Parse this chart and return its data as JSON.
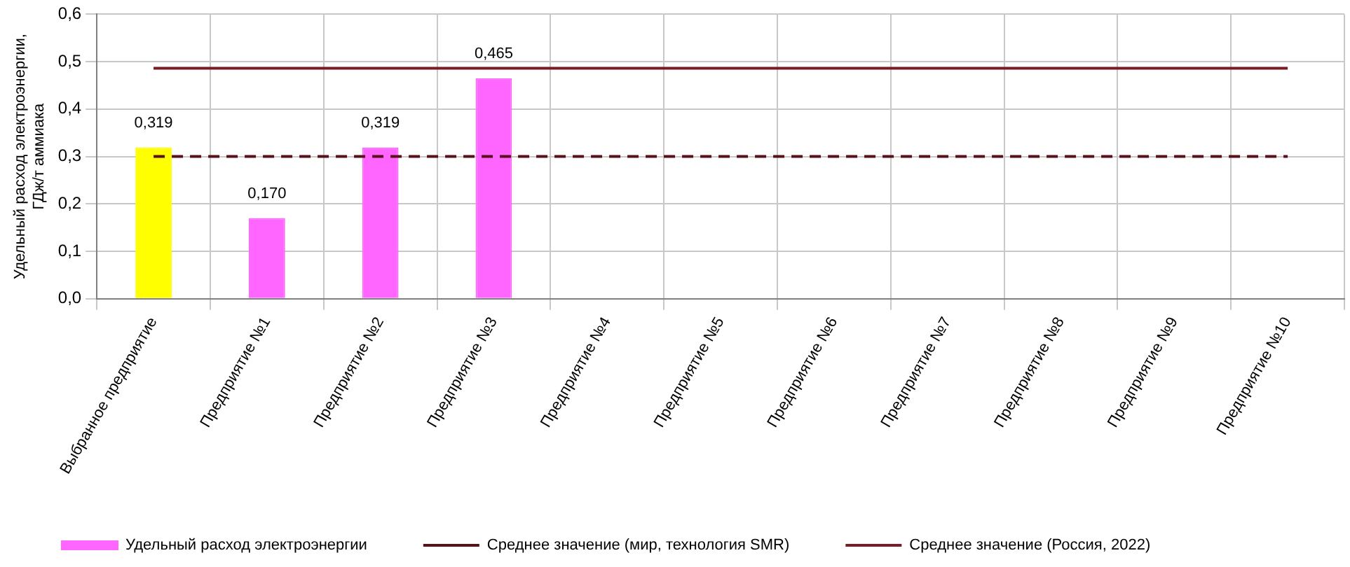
{
  "chart_data": {
    "type": "bar",
    "ylabel": "Удельный расход электроэнергии, ГДж/т аммиака",
    "categories": [
      "Выбранное предприятие",
      "Предприятие №1",
      "Предприятие №2",
      "Предприятие №3",
      "Предприятие №4",
      "Предприятие №5",
      "Предприятие №6",
      "Предприятие №7",
      "Предприятие №8",
      "Предприятие №9",
      "Предприятие №10"
    ],
    "series": [
      {
        "name": "Удельный расход электроэнергии",
        "color": "#ff66ff",
        "colors": [
          "#ffff00",
          "#ff66ff",
          "#ff66ff",
          "#ff66ff",
          "#ff66ff",
          "#ff66ff",
          "#ff66ff",
          "#ff66ff",
          "#ff66ff",
          "#ff66ff",
          "#ff66ff"
        ],
        "values": [
          0.319,
          0.17,
          0.319,
          0.465,
          null,
          null,
          null,
          null,
          null,
          null,
          null
        ],
        "value_labels": [
          "0,319",
          "0,170",
          "0,319",
          "0,465",
          null,
          null,
          null,
          null,
          null,
          null,
          null
        ]
      },
      {
        "name": "Среднее значение (мир, технология SMR)",
        "type": "line",
        "color": "#5a1018",
        "line_style": "dashed",
        "values": [
          0.3,
          0.3,
          0.3,
          0.3,
          0.3,
          0.3,
          0.3,
          0.3,
          0.3,
          0.3,
          0.3
        ]
      },
      {
        "name": "Среднее значение (Россия, 2022)",
        "type": "line",
        "color": "#7a1c24",
        "line_style": "solid",
        "values": [
          0.486,
          0.486,
          0.486,
          0.486,
          0.486,
          0.486,
          0.486,
          0.486,
          0.486,
          0.486,
          0.486
        ]
      }
    ],
    "ylim": [
      0,
      0.6
    ],
    "yticks": [
      {
        "value": 0,
        "label": "0,0"
      },
      {
        "value": 0.1,
        "label": "0,1"
      },
      {
        "value": 0.2,
        "label": "0,2"
      },
      {
        "value": 0.3,
        "label": "0,3"
      },
      {
        "value": 0.4,
        "label": "0,4"
      },
      {
        "value": 0.5,
        "label": "0,5"
      },
      {
        "value": 0.6,
        "label": "0,6"
      }
    ],
    "grid": true,
    "legend": "bottom",
    "marker": "none"
  }
}
